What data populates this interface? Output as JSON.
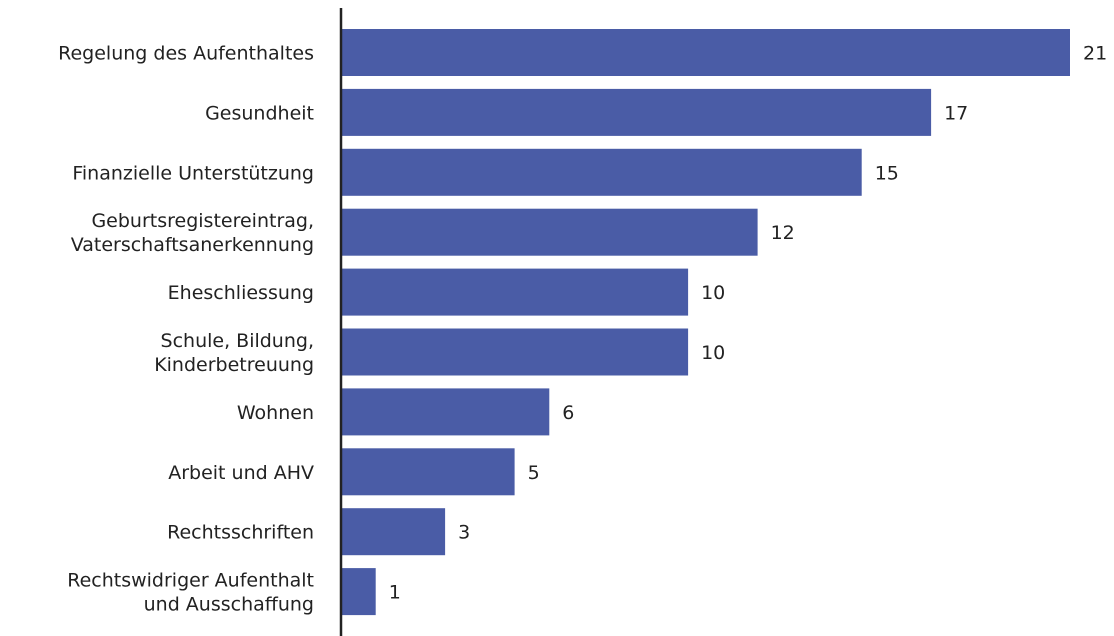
{
  "chart_data": {
    "type": "bar",
    "orientation": "horizontal",
    "categories": [
      [
        "Regelung des Aufenthaltes"
      ],
      [
        "Gesundheit"
      ],
      [
        "Finanzielle Unterstützung"
      ],
      [
        "Geburtsregistereintrag,",
        "Vaterschaftsanerkennung"
      ],
      [
        "Eheschliessung"
      ],
      [
        "Schule, Bildung,",
        "Kinderbetreuung"
      ],
      [
        "Wohnen"
      ],
      [
        "Arbeit und AHV"
      ],
      [
        "Rechtsschriften"
      ],
      [
        "Rechtswidriger Aufenthalt",
        "und Ausschaffung"
      ]
    ],
    "values": [
      21,
      17,
      15,
      12,
      10,
      10,
      6,
      5,
      3,
      1
    ],
    "xlim": [
      0,
      21
    ],
    "grid": false,
    "legend": false,
    "bar_color": "#4a5ca6",
    "axis_color": "#222222"
  }
}
